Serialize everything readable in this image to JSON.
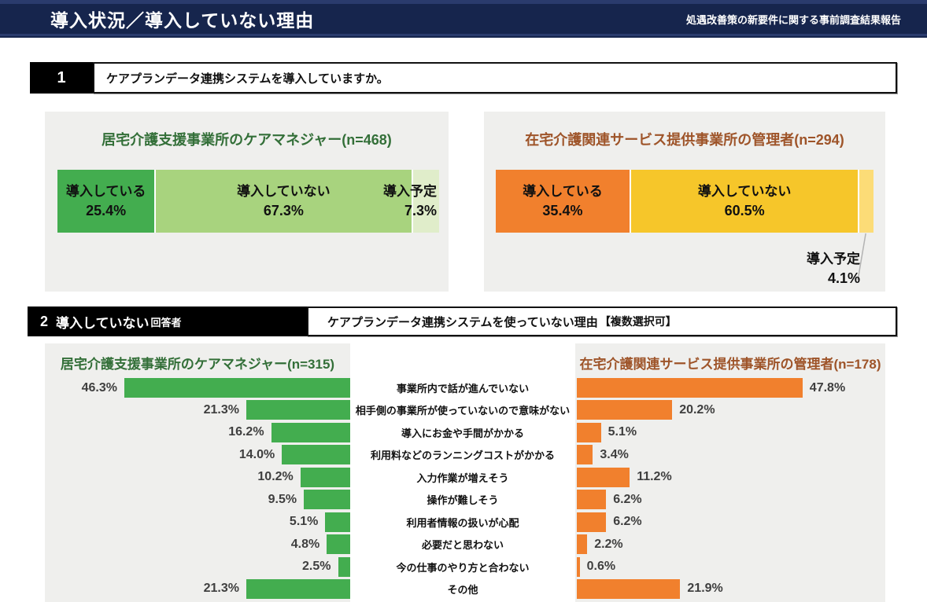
{
  "header": {
    "title": "導入状況／導入していない理由",
    "subtitle": "処遇改善策の新要件に関する事前調査結果報告"
  },
  "section1": {
    "number": "1",
    "question": "ケアプランデータ連携システムを導入していますか。"
  },
  "section2": {
    "number": "2",
    "respondent": "導入していない",
    "respondent_suffix": "回答者",
    "question": "ケアプランデータ連携システムを使っていない理由",
    "note": "【複数選択可】"
  },
  "colors": {
    "header_bg": "#16254d",
    "panel_bg": "#efefed",
    "green": "#43ad4f",
    "green_light": "#a8d37e",
    "green_pale": "#e0edca",
    "green_title": "#336f38",
    "orange": "#f1802d",
    "yellow": "#f6c62a",
    "yellow_pale": "#fcdc77",
    "orange_title": "#9e5429",
    "value_label": "#3f3f3f"
  },
  "chart_data": [
    {
      "id": "q1-implementation-status",
      "type": "bar",
      "subtype": "stacked-horizontal",
      "unit": "%",
      "charts": [
        {
          "title": "居宅介護支援事業所のケアマネジャー(n=468)",
          "title_color": "#336f38",
          "segments": [
            {
              "label": "導入している",
              "value": 25.4,
              "color": "#43ad4f",
              "label_position": "inside"
            },
            {
              "label": "導入していない",
              "value": 67.3,
              "color": "#a8d37e",
              "label_position": "inside"
            },
            {
              "label": "導入予定",
              "value": 7.3,
              "color": "#e0edca",
              "label_position": "inside-right"
            }
          ]
        },
        {
          "title": "在宅介護関連サービス提供事業所の管理者(n=294)",
          "title_color": "#9e5429",
          "segments": [
            {
              "label": "導入している",
              "value": 35.4,
              "color": "#f1802d",
              "label_position": "inside"
            },
            {
              "label": "導入していない",
              "value": 60.5,
              "color": "#f6c62a",
              "label_position": "inside"
            },
            {
              "label": "導入予定",
              "value": 4.1,
              "color": "#fcdc77",
              "label_position": "callout-below"
            }
          ]
        }
      ]
    },
    {
      "id": "q2-reasons-not-using",
      "type": "bar",
      "subtype": "butterfly-horizontal",
      "unit": "%",
      "xlim": [
        0,
        50
      ],
      "categories": [
        "事業所内で話が進んでいない",
        "相手側の事業所が使っていないので意味がない",
        "導入にお金や手間がかかる",
        "利用料などのランニングコストがかかる",
        "入力作業が増えそう",
        "操作が難しそう",
        "利用者情報の扱いが心配",
        "必要だと思わない",
        "今の仕事のやり方と合わない",
        "その他"
      ],
      "series": [
        {
          "name": "居宅介護支援事業所のケアマネジャー(n=315)",
          "title_color": "#336f38",
          "color": "#43ad4f",
          "side": "left",
          "values": [
            46.3,
            21.3,
            16.2,
            14.0,
            10.2,
            9.5,
            5.1,
            4.8,
            2.5,
            21.3
          ]
        },
        {
          "name": "在宅介護関連サービス提供事業所の管理者(n=178)",
          "title_color": "#9e5429",
          "color": "#f1802d",
          "side": "right",
          "values": [
            47.8,
            20.2,
            5.1,
            3.4,
            11.2,
            6.2,
            6.2,
            2.2,
            0.6,
            21.9
          ]
        }
      ]
    }
  ]
}
